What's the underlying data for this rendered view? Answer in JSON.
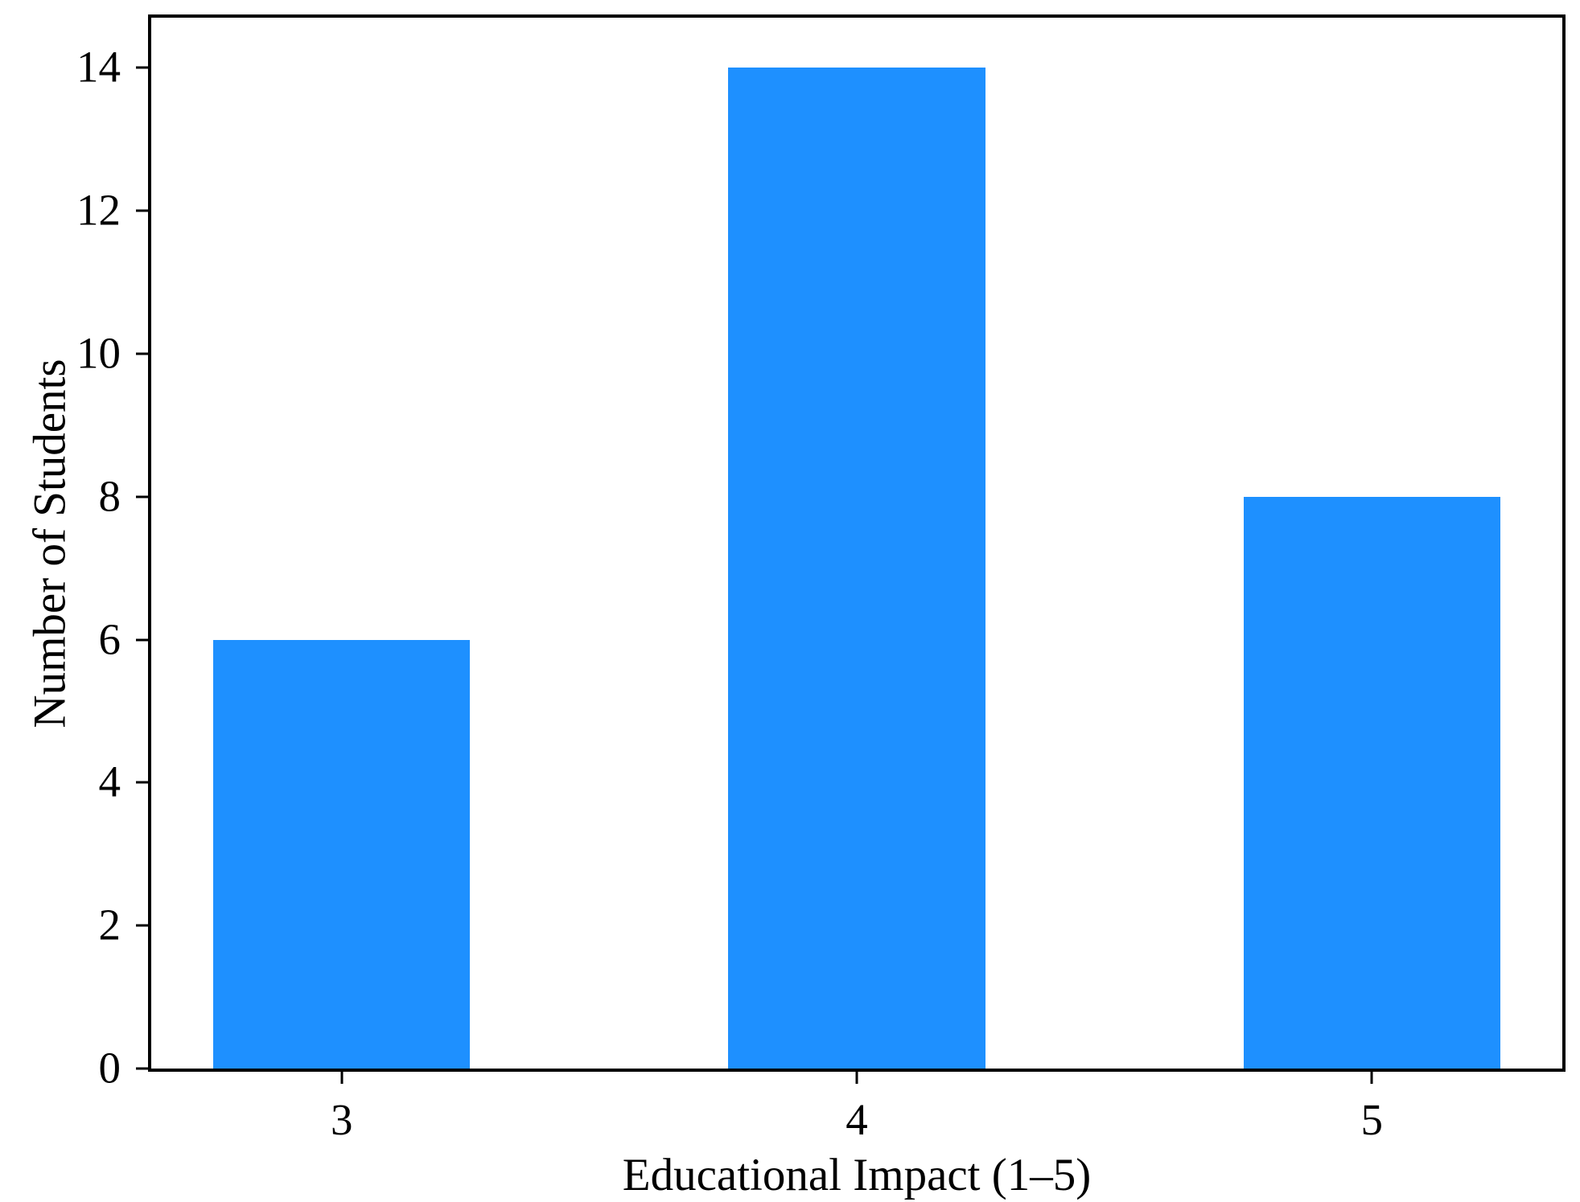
{
  "chart_data": {
    "type": "bar",
    "categories": [
      "3",
      "4",
      "5"
    ],
    "values": [
      6,
      14,
      8
    ],
    "title": "",
    "xlabel": "Educational Impact (1–5)",
    "ylabel": "Number of Students",
    "ylim": [
      0,
      14.7
    ],
    "yticks": [
      0,
      2,
      4,
      6,
      8,
      10,
      12,
      14
    ],
    "grid": false,
    "legend": null,
    "bar_color": "#1E90FF",
    "spine_color": "#000000",
    "background_color": "#FFFFFF"
  }
}
